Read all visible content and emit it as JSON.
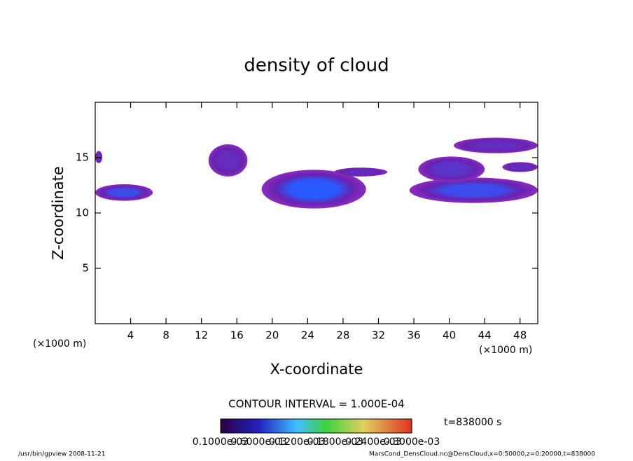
{
  "chart_data": {
    "type": "contour",
    "title": "density of cloud",
    "x_label": "X-coordinate",
    "y_label": "Z-coordinate",
    "x_unit_left": "(×1000 m)",
    "x_unit_right": "(×1000 m)",
    "xlim": [
      0,
      50
    ],
    "ylim": [
      0,
      20
    ],
    "xticks": [
      4,
      8,
      12,
      16,
      20,
      24,
      28,
      32,
      36,
      40,
      44,
      48
    ],
    "yticks": [
      5,
      10,
      15
    ],
    "contour_interval": "CONTOUR INTERVAL = 1.000E-04",
    "time_label": "t=838000 s",
    "colorbar_labels": [
      "0.1000e-03",
      "0.6000e-03",
      "0.1200e-03",
      "0.1800e-03",
      "0.2400e-03",
      "0.3000e-03"
    ],
    "footer_left": "/usr/bin/gpview   2008-11-21",
    "footer_right": "MarsCond_DensCloud.nc@DensCloud,x=0:50000,z=0:20000,t=838000",
    "blobs": [
      {
        "x": [
          0,
          6.5
        ],
        "z": [
          11.1,
          12.6
        ],
        "value": 0.0006
      },
      {
        "x": [
          0,
          0.8
        ],
        "z": [
          14.5,
          15.6
        ],
        "value": 0.0002
      },
      {
        "x": [
          12.8,
          17.2
        ],
        "z": [
          13.3,
          16.2
        ],
        "value": 0.0002
      },
      {
        "x": [
          18.8,
          30.6
        ],
        "z": [
          10.4,
          13.9
        ],
        "value": 0.0008
      },
      {
        "x": [
          27,
          33
        ],
        "z": [
          13.3,
          14.1
        ],
        "value": 0.0002
      },
      {
        "x": [
          35.5,
          50
        ],
        "z": [
          10.9,
          13.2
        ],
        "value": 0.0006
      },
      {
        "x": [
          36.5,
          44
        ],
        "z": [
          12.8,
          15.1
        ],
        "value": 0.0003
      },
      {
        "x": [
          40.5,
          50
        ],
        "z": [
          15.4,
          16.8
        ],
        "value": 0.0002
      },
      {
        "x": [
          46,
          50
        ],
        "z": [
          13.7,
          14.6
        ],
        "value": 0.0002
      }
    ]
  }
}
